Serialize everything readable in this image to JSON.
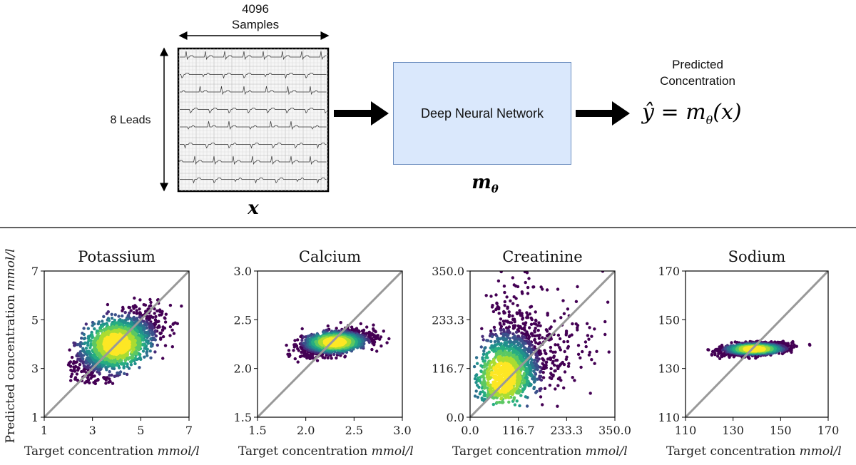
{
  "diagram": {
    "input_dim_width": "4096",
    "input_dim_width_label": "Samples",
    "input_dim_height": "8 Leads",
    "input_var": "x",
    "model_label": "Deep Neural Network",
    "model_var": "m",
    "model_var_sub": "θ",
    "output_title_line1": "Predicted",
    "output_title_line2": "Concentration",
    "output_formula_lhs": "ŷ",
    "output_formula_eq": "=",
    "output_formula_m": "m",
    "output_formula_sub": "θ",
    "output_formula_arg": "(x)"
  },
  "axis_text": {
    "ylabel_main": "Predicted concentration",
    "xlabel_main": "Target concentration",
    "unit": "mmol/l"
  },
  "colors": {
    "box_fill": "#dae8fc",
    "box_border": "#6c8ebf",
    "diagonal": "#999999",
    "point_low": "#440154",
    "point_mid": "#21908c",
    "point_high": "#fde725"
  },
  "chart_data": [
    {
      "type": "scatter",
      "title": "Potassium",
      "xlabel": "Target concentration mmol/l",
      "ylabel": "Predicted concentration mmol/l",
      "xlim": [
        1,
        7
      ],
      "ylim": [
        1,
        7
      ],
      "xticks": [
        "1",
        "3",
        "5",
        "7"
      ],
      "yticks": [
        "1",
        "3",
        "5",
        "7"
      ],
      "cloud": {
        "cx": 4.0,
        "cy": 4.0,
        "sx": 0.85,
        "sy": 0.65,
        "corr": 0.55,
        "xrange": [
          2.0,
          7.0
        ],
        "yrange": [
          2.3,
          6.9
        ]
      }
    },
    {
      "type": "scatter",
      "title": "Calcium",
      "xlabel": "Target concentration mmol/l",
      "ylabel": "",
      "xlim": [
        1.5,
        3.0
      ],
      "ylim": [
        1.5,
        3.0
      ],
      "xticks": [
        "1.5",
        "2.0",
        "2.5",
        "3.0"
      ],
      "yticks": [
        "1.5",
        "2.0",
        "2.5",
        "3.0"
      ],
      "cloud": {
        "cx": 2.3,
        "cy": 2.27,
        "sx": 0.17,
        "sy": 0.06,
        "corr": 0.45,
        "xrange": [
          1.78,
          3.0
        ],
        "yrange": [
          1.65,
          2.55
        ]
      }
    },
    {
      "type": "scatter",
      "title": "Creatinine",
      "xlabel": "Target concentration mmol/l",
      "ylabel": "",
      "xlim": [
        0.0,
        350.0
      ],
      "ylim": [
        0.0,
        350.0
      ],
      "xticks": [
        "0.0",
        "116.7",
        "233.3",
        "350.0"
      ],
      "yticks": [
        "0.0",
        "116.7",
        "233.3",
        "350.0"
      ],
      "cloud": {
        "cx": 80.0,
        "cy": 95.0,
        "sx": 45.0,
        "sy": 55.0,
        "corr": 0.35,
        "xrange": [
          8.0,
          350.0
        ],
        "yrange": [
          25.0,
          350.0
        ]
      }
    },
    {
      "type": "scatter",
      "title": "Sodium",
      "xlabel": "Target concentration mmol/l",
      "ylabel": "",
      "xlim": [
        110,
        170
      ],
      "ylim": [
        110,
        170
      ],
      "xticks": [
        "110",
        "130",
        "150",
        "170"
      ],
      "yticks": [
        "110",
        "130",
        "150",
        "170"
      ],
      "cloud": {
        "cx": 139.0,
        "cy": 138.0,
        "sx": 6.5,
        "sy": 1.2,
        "corr": 0.35,
        "xrange": [
          117.0,
          165.0
        ],
        "yrange": [
          133.0,
          141.5
        ]
      }
    }
  ]
}
